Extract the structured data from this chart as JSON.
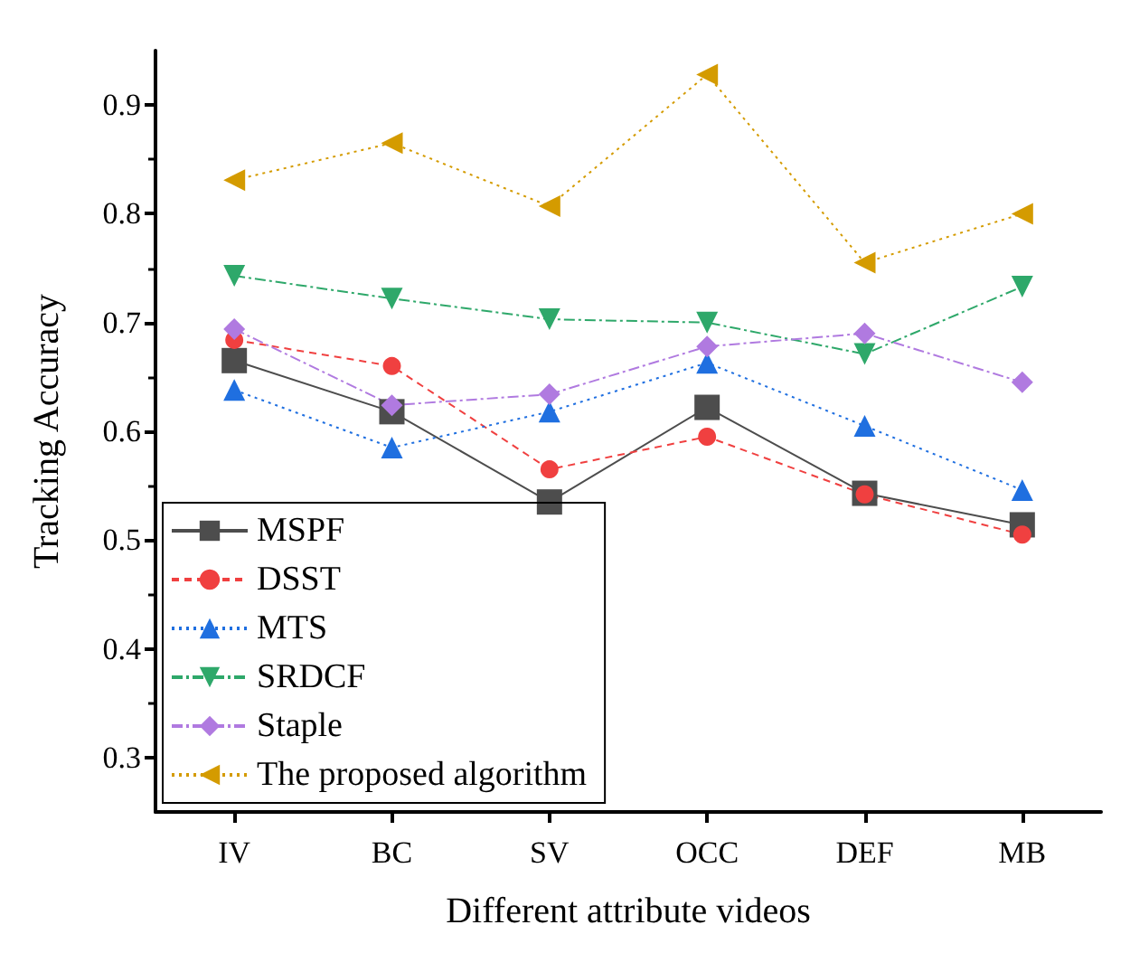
{
  "chart_data": {
    "type": "line",
    "xlabel": "Different attribute videos",
    "ylabel": "Tracking Accuracy",
    "categories": [
      "IV",
      "BC",
      "SV",
      "OCC",
      "DEF",
      "MB"
    ],
    "ylim": [
      0.25,
      0.95
    ],
    "yticks": [
      0.3,
      0.4,
      0.5,
      0.6,
      0.7,
      0.8,
      0.9
    ],
    "grid": false,
    "legend": "bottom left",
    "series": [
      {
        "name": "MSPF",
        "color": "#4d4d4d",
        "marker": "square",
        "line_style": "solid",
        "values": [
          0.665,
          0.618,
          0.535,
          0.622,
          0.543,
          0.514
        ]
      },
      {
        "name": "DSST",
        "color": "#f04040",
        "marker": "circle",
        "line_style": "dashed",
        "values": [
          0.684,
          0.66,
          0.565,
          0.595,
          0.542,
          0.505
        ]
      },
      {
        "name": "MTS",
        "color": "#1f6fe0",
        "marker": "triangle",
        "line_style": "dotted",
        "values": [
          0.638,
          0.585,
          0.618,
          0.663,
          0.605,
          0.546
        ]
      },
      {
        "name": "SRDCF",
        "color": "#2ea86a",
        "marker": "triangle-down",
        "line_style": "dashdot",
        "values": [
          0.743,
          0.722,
          0.703,
          0.7,
          0.671,
          0.733
        ]
      },
      {
        "name": "Staple",
        "color": "#b07ae0",
        "marker": "diamond",
        "line_style": "dashdot",
        "values": [
          0.694,
          0.624,
          0.634,
          0.678,
          0.69,
          0.645
        ]
      },
      {
        "name": "The proposed algorithm",
        "color": "#d49b00",
        "marker": "triangle-left",
        "line_style": "dotted",
        "values": [
          0.831,
          0.865,
          0.807,
          0.928,
          0.755,
          0.8
        ]
      }
    ]
  }
}
